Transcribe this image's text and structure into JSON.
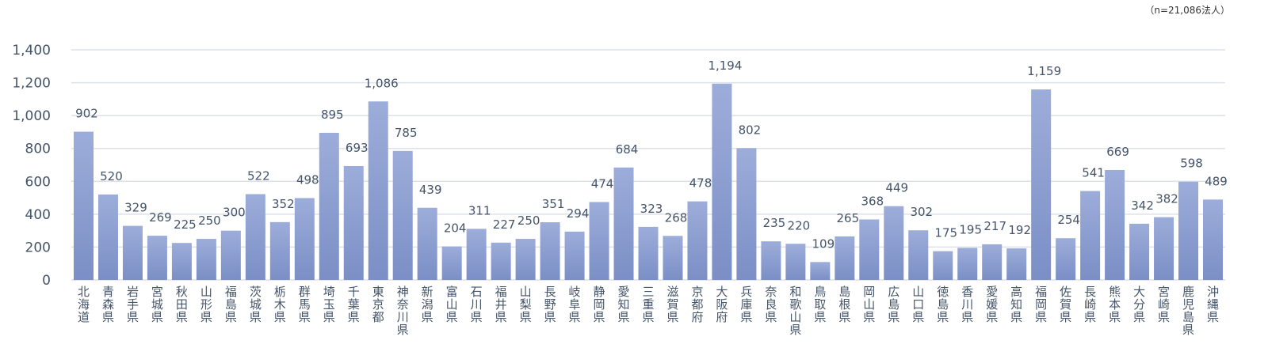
{
  "chart_data": {
    "type": "bar",
    "title": "",
    "note": "（n=21,086法人）",
    "xlabel": "",
    "ylabel": "",
    "ylim": [
      0,
      1400
    ],
    "yticks": [
      0,
      200,
      400,
      600,
      800,
      1000,
      1200,
      1400
    ],
    "ytick_labels": [
      "0",
      "200",
      "400",
      "600",
      "800",
      "1,000",
      "1,200",
      "1,400"
    ],
    "grid": true,
    "categories": [
      "北海道",
      "青森県",
      "岩手県",
      "宮城県",
      "秋田県",
      "山形県",
      "福島県",
      "茨城県",
      "栃木県",
      "群馬県",
      "埼玉県",
      "千葉県",
      "東京都",
      "神奈川県",
      "新潟県",
      "富山県",
      "石川県",
      "福井県",
      "山梨県",
      "長野県",
      "岐阜県",
      "静岡県",
      "愛知県",
      "三重県",
      "滋賀県",
      "京都府",
      "大阪府",
      "兵庫県",
      "奈良県",
      "和歌山県",
      "鳥取県",
      "島根県",
      "岡山県",
      "広島県",
      "山口県",
      "徳島県",
      "香川県",
      "愛媛県",
      "高知県",
      "福岡県",
      "佐賀県",
      "長崎県",
      "熊本県",
      "大分県",
      "宮崎県",
      "鹿児島県",
      "沖縄県"
    ],
    "values": [
      902,
      520,
      329,
      269,
      225,
      250,
      300,
      522,
      352,
      498,
      895,
      693,
      1086,
      785,
      439,
      204,
      311,
      227,
      250,
      351,
      294,
      474,
      684,
      323,
      268,
      478,
      1194,
      802,
      235,
      220,
      109,
      265,
      368,
      449,
      302,
      175,
      195,
      217,
      192,
      1159,
      254,
      541,
      669,
      342,
      382,
      598,
      489
    ],
    "value_labels": [
      "902",
      "520",
      "329",
      "269",
      "225",
      "250",
      "300",
      "522",
      "352",
      "498",
      "895",
      "693",
      "1,086",
      "785",
      "439",
      "204",
      "311",
      "227",
      "250",
      "351",
      "294",
      "474",
      "684",
      "323",
      "268",
      "478",
      "1,194",
      "802",
      "235",
      "220",
      "109",
      "265",
      "368",
      "449",
      "302",
      "175",
      "195",
      "217",
      "192",
      "1,159",
      "254",
      "541",
      "669",
      "342",
      "382",
      "598",
      "489"
    ],
    "colors": {
      "bar_top": "#9dadda",
      "bar_bottom": "#7b8fc6",
      "grid": "#dde1ea",
      "text": "#44546a"
    }
  }
}
